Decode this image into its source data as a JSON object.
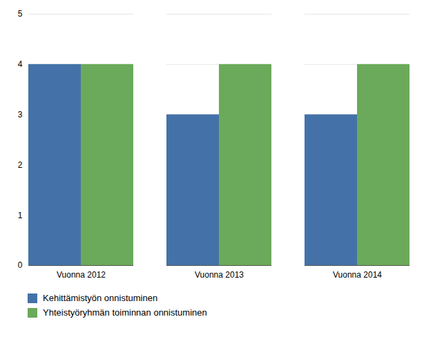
{
  "chart_data": {
    "type": "bar",
    "categories": [
      "Vuonna 2012",
      "Vuonna 2013",
      "Vuonna 2014"
    ],
    "series": [
      {
        "name": "Kehittämistyön onnistuminen",
        "color": "#4472a8",
        "values": [
          4,
          3,
          3
        ]
      },
      {
        "name": "Yhteistyöryhmän toiminnan onnistuminen",
        "color": "#6aaa5a",
        "values": [
          4,
          4,
          4
        ]
      }
    ],
    "ylim": [
      0,
      5
    ],
    "yticks": [
      0,
      1,
      2,
      3,
      4,
      5
    ],
    "grid": true,
    "legend": "bottom"
  }
}
